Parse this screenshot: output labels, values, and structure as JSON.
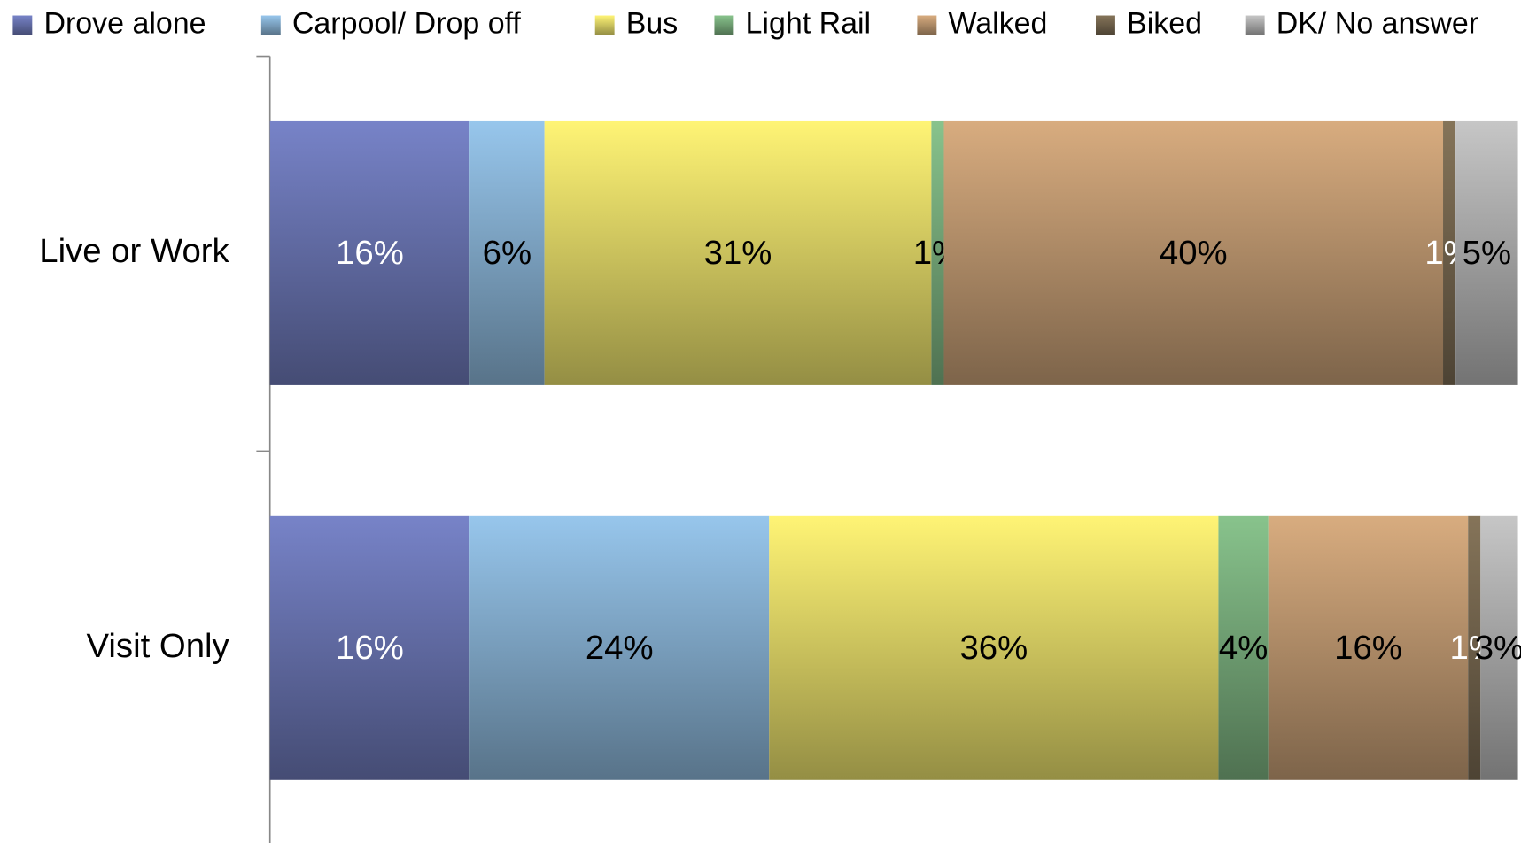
{
  "chart_data": {
    "type": "bar",
    "orientation": "horizontal",
    "stacked": "percent",
    "categories": [
      "Live or Work",
      "Visit Only"
    ],
    "series": [
      {
        "name": "Drove alone",
        "color": "#7783c8",
        "values": [
          16,
          16
        ],
        "value_labels": [
          "16%",
          "16%"
        ]
      },
      {
        "name": "Carpool/ Drop off",
        "color": "#97c6ec",
        "values": [
          6,
          24
        ],
        "value_labels": [
          "6%",
          "24%"
        ]
      },
      {
        "name": "Bus",
        "color": "#fff475",
        "values": [
          31,
          36
        ],
        "value_labels": [
          "31%",
          "36%"
        ]
      },
      {
        "name": "Light Rail",
        "color": "#88c38c",
        "values": [
          1,
          4
        ],
        "value_labels": [
          "1%",
          "4%"
        ]
      },
      {
        "name": "Walked",
        "color": "#d8ac7f",
        "values": [
          40,
          16
        ],
        "value_labels": [
          "40%",
          "16%"
        ]
      },
      {
        "name": "Biked",
        "color": "#857459",
        "values": [
          1,
          1
        ],
        "value_labels": [
          "1%",
          "1%"
        ]
      },
      {
        "name": "DK/ No answer",
        "color": "#c6c6c6",
        "values": [
          5,
          3
        ],
        "value_labels": [
          "5%",
          "3%"
        ]
      }
    ],
    "legend": "top"
  }
}
